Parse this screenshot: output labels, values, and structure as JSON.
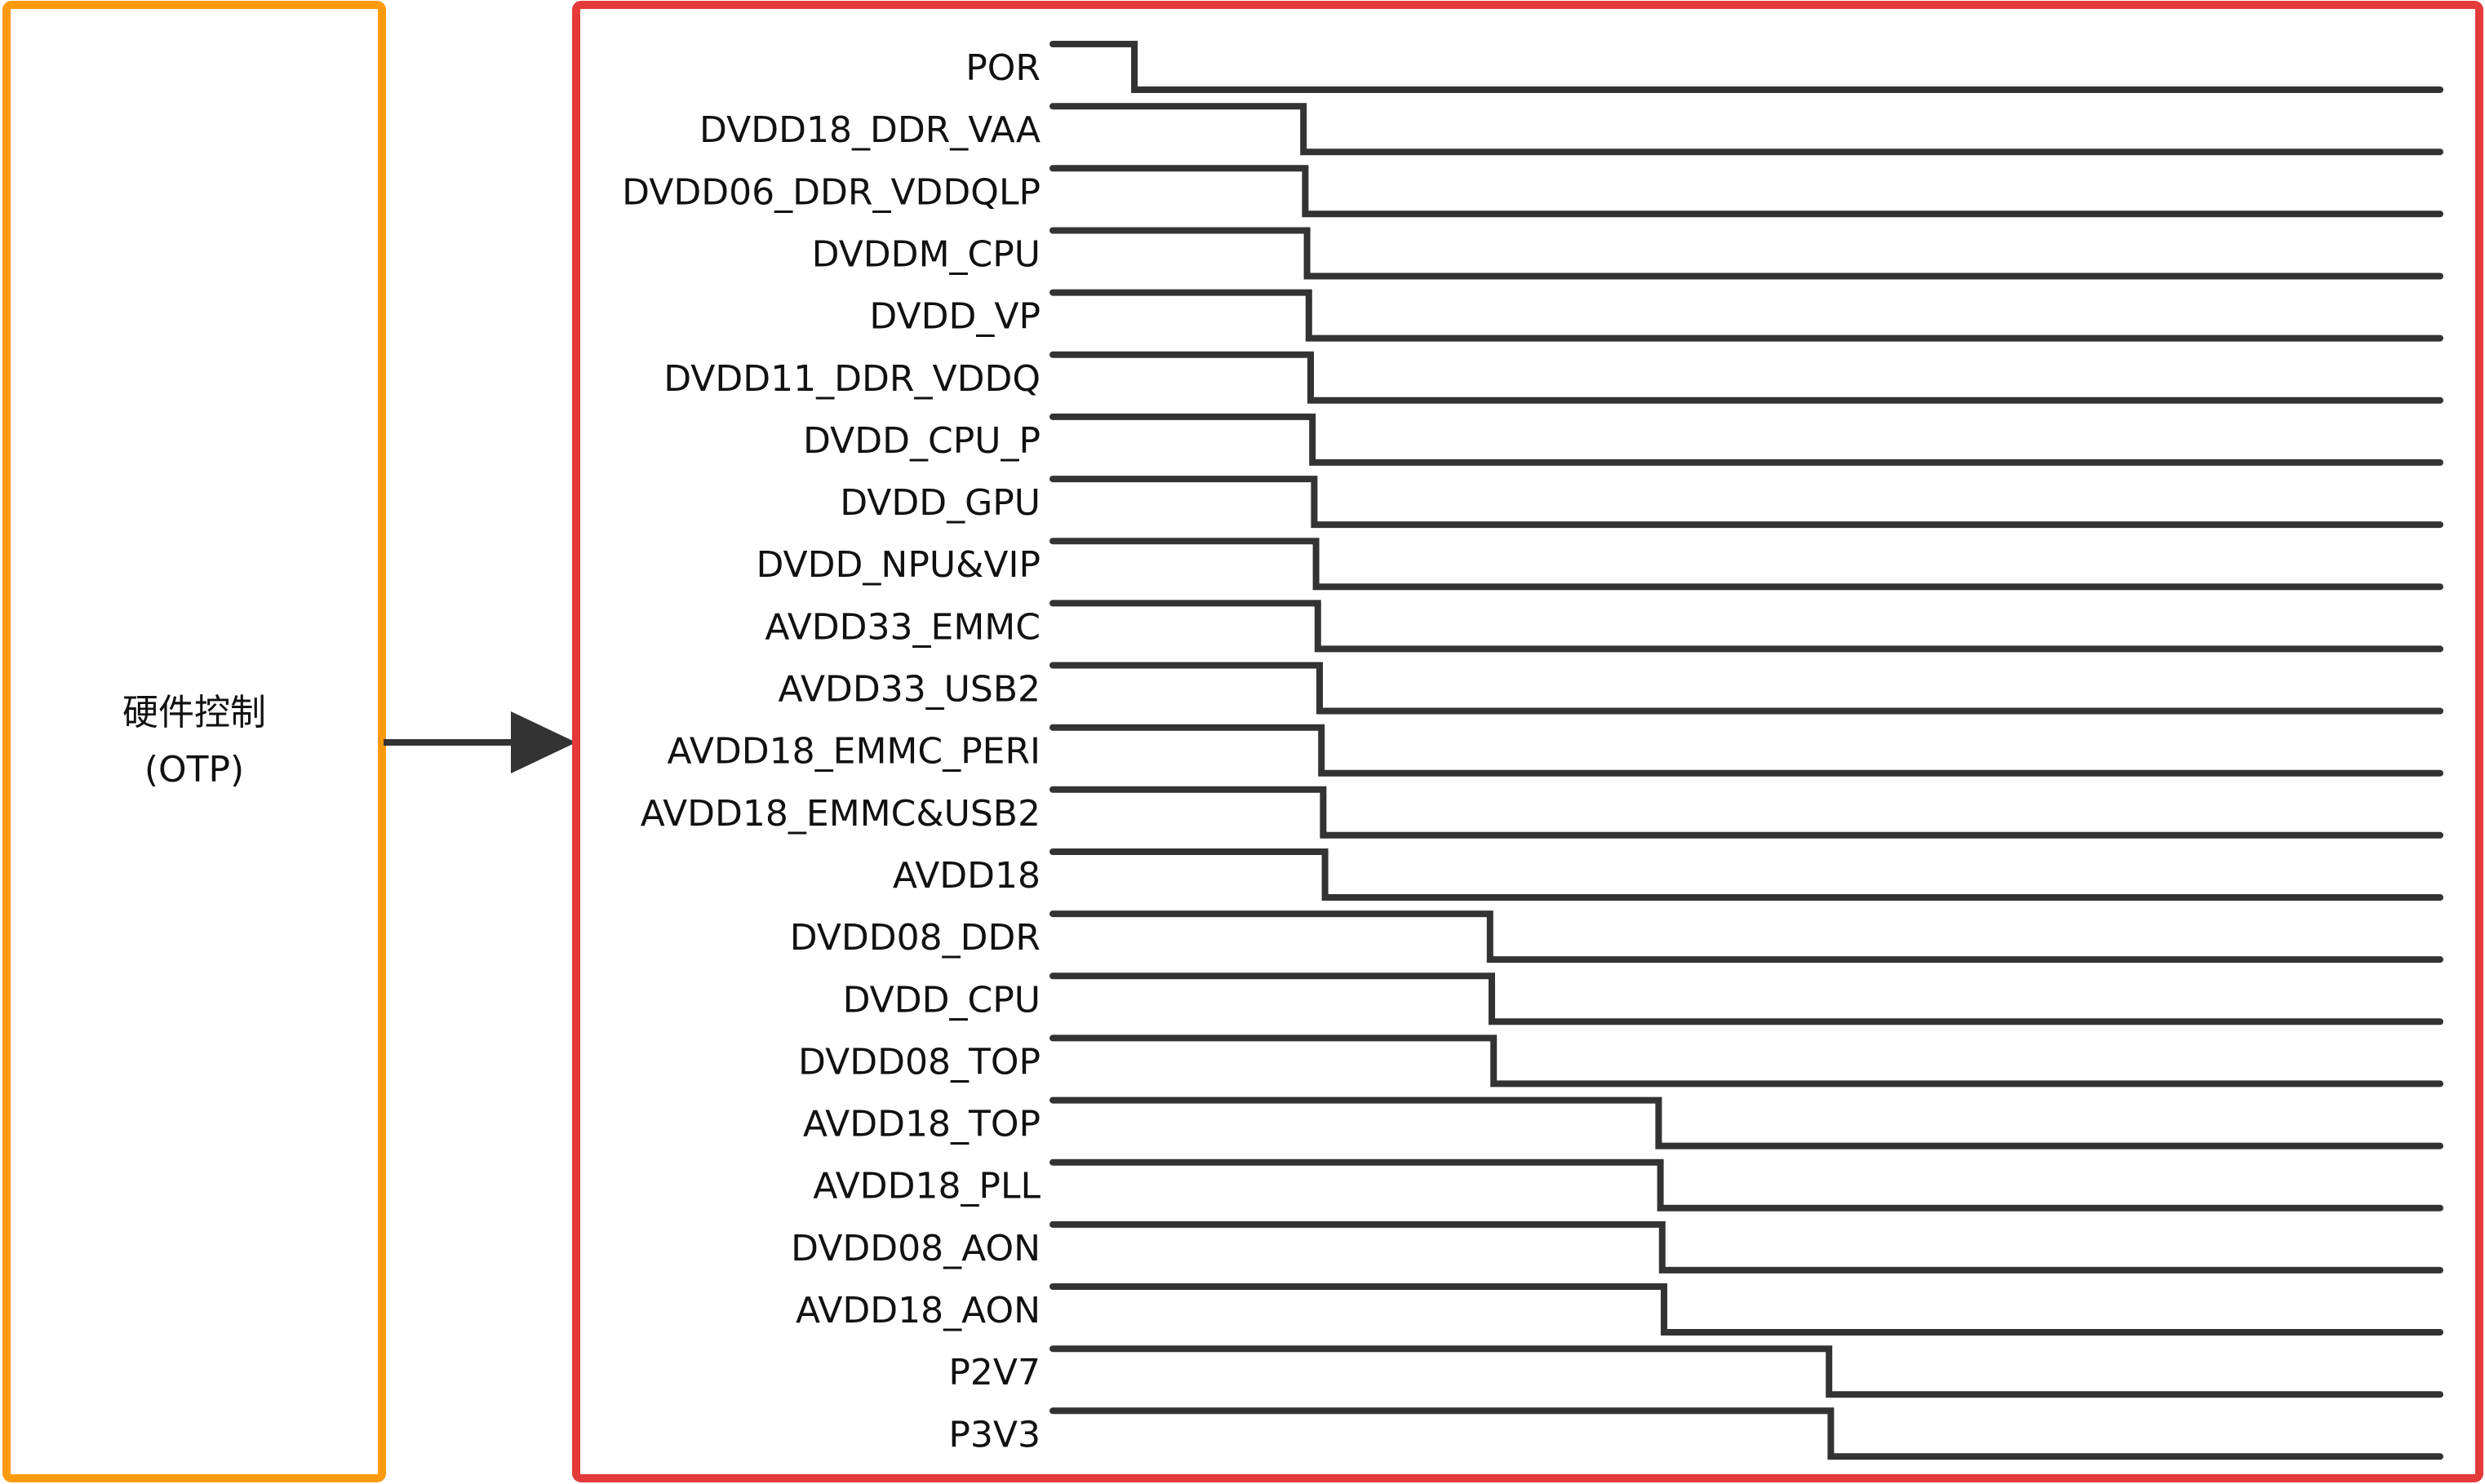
{
  "controller": {
    "title": "硬件控制",
    "subtitle": "(OTP)"
  },
  "signals": [
    {
      "name": "POR",
      "step": 0
    },
    {
      "name": "DVDD18_DDR_VAA",
      "step": 1
    },
    {
      "name": "DVDD06_DDR_VDDQLP",
      "step": 1
    },
    {
      "name": "DVDDM_CPU",
      "step": 1
    },
    {
      "name": "DVDD_VP",
      "step": 1
    },
    {
      "name": "DVDD11_DDR_VDDQ",
      "step": 1
    },
    {
      "name": "DVDD_CPU_P",
      "step": 1
    },
    {
      "name": "DVDD_GPU",
      "step": 1
    },
    {
      "name": "DVDD_NPU&VIP",
      "step": 1
    },
    {
      "name": "AVDD33_EMMC",
      "step": 1
    },
    {
      "name": "AVDD33_USB2",
      "step": 1
    },
    {
      "name": "AVDD18_EMMC_PERI",
      "step": 1
    },
    {
      "name": "AVDD18_EMMC&USB2",
      "step": 1
    },
    {
      "name": "AVDD18",
      "step": 1
    },
    {
      "name": "DVDD08_DDR",
      "step": 2
    },
    {
      "name": "DVDD_CPU",
      "step": 2
    },
    {
      "name": "DVDD08_TOP",
      "step": 2
    },
    {
      "name": "AVDD18_TOP",
      "step": 3
    },
    {
      "name": "AVDD18_PLL",
      "step": 3
    },
    {
      "name": "DVDD08_AON",
      "step": 3
    },
    {
      "name": "AVDD18_AON",
      "step": 3
    },
    {
      "name": "P2V7",
      "step": 4
    },
    {
      "name": "P3V3",
      "step": 4
    }
  ],
  "colors": {
    "controller_border": "#FF9A0E",
    "sequence_border": "#E53A3A",
    "line": "#333333"
  }
}
